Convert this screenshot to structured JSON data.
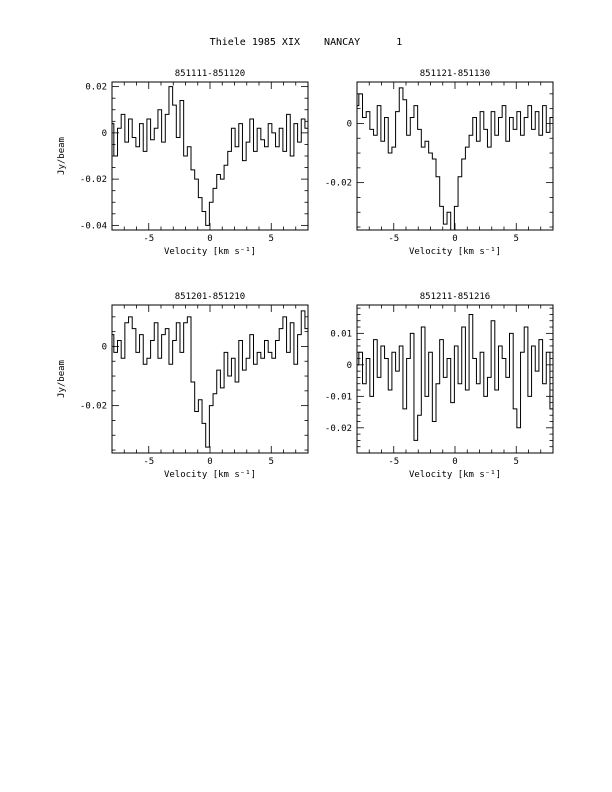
{
  "page": {
    "title": "Thiele 1985 XIX    NANCAY      1"
  },
  "chart_data": [
    {
      "type": "line",
      "title": "851111-851120",
      "xlabel": "Velocity [km s⁻¹]",
      "ylabel": "Jy/beam",
      "xlim": [
        -8,
        8
      ],
      "ylim": [
        -0.042,
        0.022
      ],
      "xticks": [
        -5,
        0,
        5
      ],
      "yticks": [
        0.02,
        0,
        -0.02,
        -0.04
      ],
      "ytick_labels": [
        "0.02",
        "0",
        "-0.02",
        "-0.04"
      ],
      "grid": false,
      "series": [
        {
          "x": [
            -8.0,
            -7.7,
            -7.4,
            -7.1,
            -6.8,
            -6.5,
            -6.2,
            -5.9,
            -5.6,
            -5.3,
            -5.0,
            -4.7,
            -4.4,
            -4.1,
            -3.8,
            -3.5,
            -3.2,
            -2.9,
            -2.6,
            -2.3,
            -2.0,
            -1.7,
            -1.4,
            -1.1,
            -0.8,
            -0.5,
            -0.2,
            0.1,
            0.4,
            0.7,
            1.0,
            1.3,
            1.6,
            1.9,
            2.2,
            2.5,
            2.8,
            3.1,
            3.4,
            3.7,
            4.0,
            4.3,
            4.6,
            4.9,
            5.2,
            5.5,
            5.8,
            6.1,
            6.4,
            6.7,
            7.0,
            7.3,
            7.6,
            7.9
          ],
          "y": [
            0.004,
            -0.01,
            0.002,
            0.008,
            -0.004,
            0.006,
            -0.002,
            -0.006,
            0.004,
            -0.008,
            0.006,
            -0.003,
            0.002,
            0.01,
            -0.004,
            0.008,
            0.02,
            0.012,
            -0.002,
            0.014,
            -0.01,
            -0.006,
            -0.016,
            -0.02,
            -0.028,
            -0.034,
            -0.04,
            -0.03,
            -0.024,
            -0.018,
            -0.02,
            -0.014,
            -0.008,
            0.002,
            -0.006,
            0.004,
            -0.012,
            -0.004,
            0.006,
            -0.008,
            0.002,
            -0.003,
            -0.006,
            0.004,
            0.0,
            -0.006,
            0.002,
            -0.008,
            0.008,
            -0.01,
            0.004,
            -0.004,
            0.006,
            0.002
          ]
        }
      ]
    },
    {
      "type": "line",
      "title": "851121-851130",
      "xlabel": "Velocity [km s⁻¹]",
      "ylabel": "",
      "xlim": [
        -8,
        8
      ],
      "ylim": [
        -0.036,
        0.014
      ],
      "xticks": [
        -5,
        0,
        5
      ],
      "yticks": [
        0,
        -0.02
      ],
      "ytick_labels": [
        "0",
        "-0.02"
      ],
      "grid": false,
      "series": [
        {
          "x": [
            -8.0,
            -7.7,
            -7.4,
            -7.1,
            -6.8,
            -6.5,
            -6.2,
            -5.9,
            -5.6,
            -5.3,
            -5.0,
            -4.7,
            -4.4,
            -4.1,
            -3.8,
            -3.5,
            -3.2,
            -2.9,
            -2.6,
            -2.3,
            -2.0,
            -1.7,
            -1.4,
            -1.1,
            -0.8,
            -0.5,
            -0.2,
            0.1,
            0.4,
            0.7,
            1.0,
            1.3,
            1.6,
            1.9,
            2.2,
            2.5,
            2.8,
            3.1,
            3.4,
            3.7,
            4.0,
            4.3,
            4.6,
            4.9,
            5.2,
            5.5,
            5.8,
            6.1,
            6.4,
            6.7,
            7.0,
            7.3,
            7.6,
            7.9
          ],
          "y": [
            0.006,
            0.01,
            0.002,
            0.004,
            -0.002,
            -0.004,
            0.006,
            -0.006,
            0.002,
            -0.01,
            -0.008,
            0.004,
            0.012,
            0.008,
            -0.004,
            0.002,
            0.006,
            -0.002,
            -0.008,
            -0.006,
            -0.01,
            -0.012,
            -0.018,
            -0.028,
            -0.034,
            -0.03,
            -0.036,
            -0.028,
            -0.018,
            -0.012,
            -0.008,
            -0.004,
            0.002,
            -0.006,
            0.004,
            -0.002,
            -0.008,
            0.004,
            -0.004,
            0.002,
            0.006,
            -0.006,
            0.002,
            -0.002,
            0.004,
            -0.004,
            0.002,
            0.006,
            -0.002,
            0.004,
            -0.004,
            0.006,
            -0.003,
            0.002
          ]
        }
      ]
    },
    {
      "type": "line",
      "title": "851201-851210",
      "xlabel": "Velocity [km s⁻¹]",
      "ylabel": "Jy/beam",
      "xlim": [
        -8,
        8
      ],
      "ylim": [
        -0.036,
        0.014
      ],
      "xticks": [
        -5,
        0,
        5
      ],
      "yticks": [
        0,
        -0.02
      ],
      "ytick_labels": [
        "0",
        "-0.02"
      ],
      "grid": false,
      "series": [
        {
          "x": [
            -8.0,
            -7.7,
            -7.4,
            -7.1,
            -6.8,
            -6.5,
            -6.2,
            -5.9,
            -5.6,
            -5.3,
            -5.0,
            -4.7,
            -4.4,
            -4.1,
            -3.8,
            -3.5,
            -3.2,
            -2.9,
            -2.6,
            -2.3,
            -2.0,
            -1.7,
            -1.4,
            -1.1,
            -0.8,
            -0.5,
            -0.2,
            0.1,
            0.4,
            0.7,
            1.0,
            1.3,
            1.6,
            1.9,
            2.2,
            2.5,
            2.8,
            3.1,
            3.4,
            3.7,
            4.0,
            4.3,
            4.6,
            4.9,
            5.2,
            5.5,
            5.8,
            6.1,
            6.4,
            6.7,
            7.0,
            7.3,
            7.6,
            7.9
          ],
          "y": [
            0.004,
            -0.002,
            0.002,
            -0.004,
            0.008,
            0.01,
            0.006,
            -0.002,
            0.004,
            -0.006,
            -0.004,
            0.002,
            0.008,
            -0.004,
            0.004,
            0.006,
            -0.006,
            0.002,
            0.008,
            -0.002,
            0.008,
            0.01,
            -0.012,
            -0.022,
            -0.018,
            -0.026,
            -0.034,
            -0.02,
            -0.016,
            -0.008,
            -0.014,
            -0.002,
            -0.01,
            -0.004,
            -0.012,
            0.002,
            -0.008,
            -0.004,
            0.004,
            -0.006,
            -0.002,
            -0.004,
            0.002,
            -0.002,
            -0.004,
            0.002,
            0.006,
            0.01,
            -0.002,
            0.008,
            -0.006,
            0.004,
            0.012,
            0.006
          ]
        }
      ]
    },
    {
      "type": "line",
      "title": "851211-851216",
      "xlabel": "Velocity [km s⁻¹]",
      "ylabel": "",
      "xlim": [
        -8,
        8
      ],
      "ylim": [
        -0.028,
        0.019
      ],
      "xticks": [
        -5,
        0,
        5
      ],
      "yticks": [
        0.01,
        0,
        -0.01,
        -0.02
      ],
      "ytick_labels": [
        "0.01",
        "0",
        "-0.01",
        "-0.02"
      ],
      "grid": false,
      "series": [
        {
          "x": [
            -8.0,
            -7.7,
            -7.4,
            -7.1,
            -6.8,
            -6.5,
            -6.2,
            -5.9,
            -5.6,
            -5.3,
            -5.0,
            -4.7,
            -4.4,
            -4.1,
            -3.8,
            -3.5,
            -3.2,
            -2.9,
            -2.6,
            -2.3,
            -2.0,
            -1.7,
            -1.4,
            -1.1,
            -0.8,
            -0.5,
            -0.2,
            0.1,
            0.4,
            0.7,
            1.0,
            1.3,
            1.6,
            1.9,
            2.2,
            2.5,
            2.8,
            3.1,
            3.4,
            3.7,
            4.0,
            4.3,
            4.6,
            4.9,
            5.2,
            5.5,
            5.8,
            6.1,
            6.4,
            6.7,
            7.0,
            7.3,
            7.6,
            7.9
          ],
          "y": [
            0.0,
            0.004,
            -0.006,
            0.002,
            -0.01,
            0.008,
            -0.004,
            0.006,
            0.002,
            -0.008,
            0.004,
            -0.002,
            0.006,
            -0.014,
            0.002,
            0.01,
            -0.024,
            -0.016,
            0.012,
            -0.01,
            0.004,
            -0.018,
            -0.006,
            0.008,
            -0.004,
            0.002,
            -0.012,
            0.006,
            -0.006,
            0.012,
            -0.008,
            0.016,
            0.002,
            -0.006,
            0.004,
            -0.01,
            -0.004,
            0.014,
            -0.008,
            0.006,
            0.002,
            -0.004,
            0.01,
            -0.014,
            -0.02,
            0.004,
            0.012,
            -0.01,
            0.006,
            -0.002,
            0.008,
            -0.006,
            0.004,
            -0.014
          ]
        }
      ]
    }
  ]
}
